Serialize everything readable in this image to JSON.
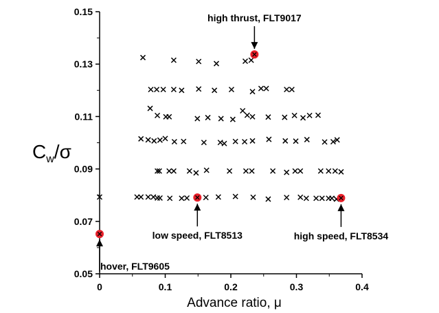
{
  "chart_data": {
    "type": "scatter",
    "title": "",
    "xlabel": "Advance ratio, μ",
    "ylabel": {
      "main": "C",
      "sub": "w",
      "tail": "/σ"
    },
    "xlim": [
      0,
      0.4
    ],
    "ylim": [
      0.05,
      0.15
    ],
    "xticks": [
      "0",
      "0.1",
      "0.2",
      "0.3",
      "0.4"
    ],
    "yticks": [
      "0.05",
      "0.07",
      "0.09",
      "0.11",
      "0.13",
      "0.15"
    ],
    "grid": false,
    "series": [
      {
        "marker": "x",
        "color": "#000000",
        "points": [
          [
            0.066,
            0.1325
          ],
          [
            0.113,
            0.1315
          ],
          [
            0.151,
            0.131
          ],
          [
            0.178,
            0.1302
          ],
          [
            0.222,
            0.1311
          ],
          [
            0.231,
            0.1315
          ],
          [
            0.078,
            0.1203
          ],
          [
            0.087,
            0.1203
          ],
          [
            0.097,
            0.1203
          ],
          [
            0.113,
            0.1203
          ],
          [
            0.125,
            0.12
          ],
          [
            0.151,
            0.1205
          ],
          [
            0.175,
            0.12
          ],
          [
            0.201,
            0.1203
          ],
          [
            0.233,
            0.1195
          ],
          [
            0.246,
            0.1207
          ],
          [
            0.254,
            0.1207
          ],
          [
            0.285,
            0.1203
          ],
          [
            0.293,
            0.1203
          ],
          [
            0.077,
            0.1131
          ],
          [
            0.088,
            0.1104
          ],
          [
            0.101,
            0.1099
          ],
          [
            0.106,
            0.1099
          ],
          [
            0.149,
            0.1092
          ],
          [
            0.165,
            0.1096
          ],
          [
            0.185,
            0.1092
          ],
          [
            0.203,
            0.1089
          ],
          [
            0.218,
            0.1122
          ],
          [
            0.225,
            0.1105
          ],
          [
            0.233,
            0.1099
          ],
          [
            0.257,
            0.1098
          ],
          [
            0.282,
            0.1097
          ],
          [
            0.297,
            0.1104
          ],
          [
            0.31,
            0.1095
          ],
          [
            0.32,
            0.1104
          ],
          [
            0.333,
            0.1105
          ],
          [
            0.063,
            0.1015
          ],
          [
            0.074,
            0.1011
          ],
          [
            0.083,
            0.1007
          ],
          [
            0.092,
            0.101
          ],
          [
            0.1,
            0.1016
          ],
          [
            0.114,
            0.1004
          ],
          [
            0.128,
            0.1005
          ],
          [
            0.159,
            0.1001
          ],
          [
            0.184,
            0.1001
          ],
          [
            0.19,
            0.0997
          ],
          [
            0.207,
            0.1005
          ],
          [
            0.221,
            0.1004
          ],
          [
            0.233,
            0.1007
          ],
          [
            0.258,
            0.1013
          ],
          [
            0.283,
            0.1007
          ],
          [
            0.299,
            0.1006
          ],
          [
            0.316,
            0.1012
          ],
          [
            0.343,
            0.1003
          ],
          [
            0.356,
            0.1004
          ],
          [
            0.362,
            0.1011
          ],
          [
            0.088,
            0.0892
          ],
          [
            0.091,
            0.0892
          ],
          [
            0.106,
            0.0892
          ],
          [
            0.113,
            0.0892
          ],
          [
            0.137,
            0.0892
          ],
          [
            0.147,
            0.0885
          ],
          [
            0.163,
            0.0895
          ],
          [
            0.198,
            0.0892
          ],
          [
            0.223,
            0.0892
          ],
          [
            0.232,
            0.0892
          ],
          [
            0.264,
            0.0892
          ],
          [
            0.285,
            0.0887
          ],
          [
            0.298,
            0.0892
          ],
          [
            0.306,
            0.0892
          ],
          [
            0.337,
            0.0892
          ],
          [
            0.349,
            0.0892
          ],
          [
            0.359,
            0.0892
          ],
          [
            0.368,
            0.0889
          ],
          [
            0.0,
            0.0793
          ],
          [
            0.057,
            0.0793
          ],
          [
            0.063,
            0.0793
          ],
          [
            0.074,
            0.0793
          ],
          [
            0.082,
            0.0793
          ],
          [
            0.088,
            0.0789
          ],
          [
            0.092,
            0.0789
          ],
          [
            0.107,
            0.0788
          ],
          [
            0.125,
            0.0788
          ],
          [
            0.133,
            0.0789
          ],
          [
            0.162,
            0.0791
          ],
          [
            0.181,
            0.0793
          ],
          [
            0.207,
            0.0795
          ],
          [
            0.234,
            0.0792
          ],
          [
            0.257,
            0.0785
          ],
          [
            0.285,
            0.0791
          ],
          [
            0.306,
            0.0792
          ],
          [
            0.315,
            0.0788
          ],
          [
            0.33,
            0.0788
          ],
          [
            0.339,
            0.0788
          ],
          [
            0.349,
            0.0788
          ],
          [
            0.354,
            0.0788
          ],
          [
            0.361,
            0.0785
          ]
        ]
      },
      {
        "marker": "circle-x",
        "color": "#e8202a",
        "points": [
          [
            0.0,
            0.0652
          ],
          [
            0.149,
            0.0791
          ],
          [
            0.236,
            0.1337
          ],
          [
            0.368,
            0.0789
          ]
        ]
      }
    ],
    "annotations": [
      {
        "text": "high thrust, FLT9017",
        "point": [
          0.236,
          0.1337
        ],
        "placement": "above"
      },
      {
        "text": "low speed, FLT8513",
        "point": [
          0.149,
          0.0791
        ],
        "placement": "below"
      },
      {
        "text": "high speed, FLT8534",
        "point": [
          0.368,
          0.0789
        ],
        "placement": "below"
      },
      {
        "text": "hover, FLT9605",
        "point": [
          0.0,
          0.0652
        ],
        "placement": "below"
      }
    ]
  }
}
